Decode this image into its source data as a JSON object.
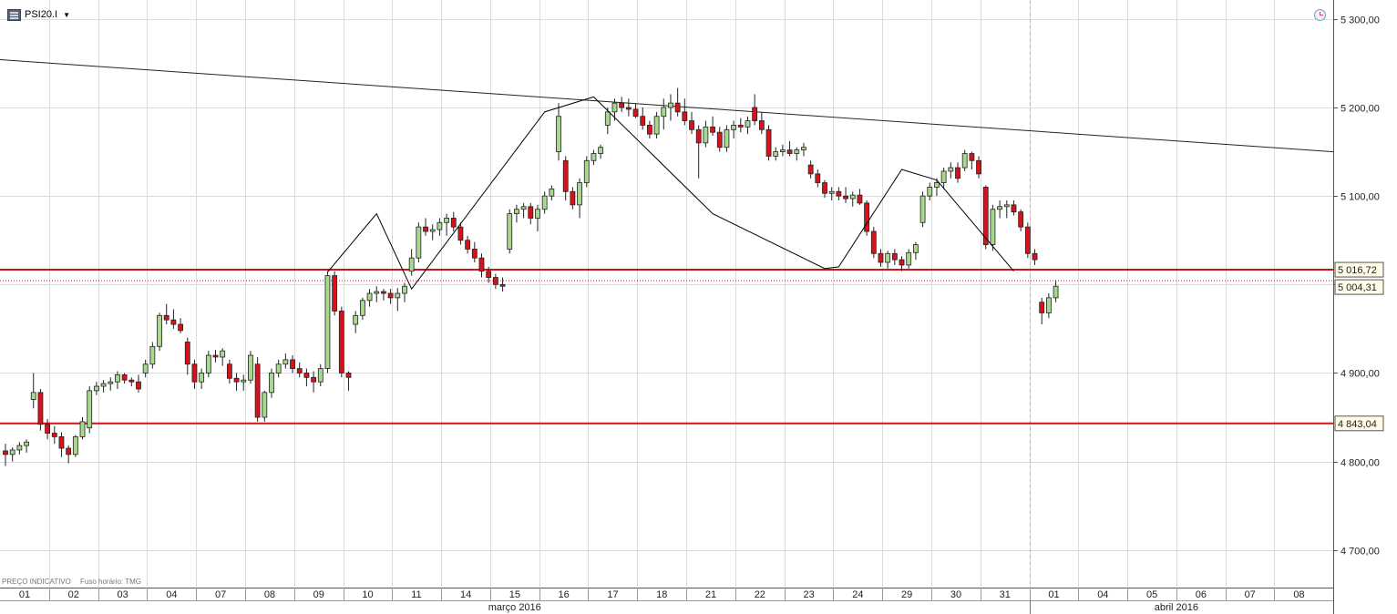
{
  "header": {
    "symbol_label": "PSI20.I",
    "symbol_icon": "chart-symbol-icon",
    "dropdown_icon": "caret-down-icon",
    "clock_icon": "clock-icon"
  },
  "footer": {
    "price_note": "PREÇO INDICATIVO",
    "timezone_note": "Fuso horário: TMG"
  },
  "chart_data": {
    "type": "candlestick",
    "title": "",
    "interval": "intraday, two bars per session (approx.)",
    "y_axis": {
      "position": "right",
      "ylim": [
        4685,
        5310
      ],
      "ticks": [
        4700,
        4800,
        4900,
        5000,
        5100,
        5200,
        5300
      ],
      "tick_labels": [
        "4 700,00",
        "4 800,00",
        "4 900,00",
        "",
        "5 100,00",
        "5 200,00",
        "5 300,00"
      ]
    },
    "x_axis": {
      "day_labels": [
        "01",
        "02",
        "03",
        "04",
        "07",
        "08",
        "09",
        "10",
        "11",
        "14",
        "15",
        "16",
        "17",
        "18",
        "21",
        "22",
        "23",
        "24",
        "29",
        "30",
        "31",
        "01",
        "04",
        "05",
        "06",
        "07",
        "08"
      ],
      "months": [
        {
          "label": "março 2016",
          "from_day_index": 0,
          "to_day_index": 20
        },
        {
          "label": "abril 2016",
          "from_day_index": 21,
          "to_day_index": 26
        }
      ]
    },
    "colors": {
      "up": "#a6d98d",
      "down": "#d7121a",
      "horizontal_line": "#d0141b",
      "pattern_line": "#000000"
    },
    "candles": [
      [
        4812,
        4820,
        4795,
        4808
      ],
      [
        4808,
        4816,
        4800,
        4813
      ],
      [
        4813,
        4822,
        4808,
        4818
      ],
      [
        4818,
        4825,
        4810,
        4822
      ],
      [
        4870,
        4900,
        4860,
        4878
      ],
      [
        4878,
        4882,
        4835,
        4842
      ],
      [
        4842,
        4848,
        4825,
        4832
      ],
      [
        4832,
        4840,
        4820,
        4828
      ],
      [
        4828,
        4833,
        4805,
        4815
      ],
      [
        4815,
        4818,
        4798,
        4808
      ],
      [
        4808,
        4830,
        4805,
        4828
      ],
      [
        4828,
        4850,
        4825,
        4845
      ],
      [
        4838,
        4885,
        4832,
        4880
      ],
      [
        4880,
        4890,
        4875,
        4885
      ],
      [
        4885,
        4892,
        4878,
        4888
      ],
      [
        4888,
        4895,
        4880,
        4890
      ],
      [
        4890,
        4902,
        4882,
        4898
      ],
      [
        4898,
        4900,
        4888,
        4892
      ],
      [
        4892,
        4895,
        4885,
        4890
      ],
      [
        4890,
        4898,
        4878,
        4882
      ],
      [
        4900,
        4915,
        4895,
        4910
      ],
      [
        4910,
        4935,
        4905,
        4930
      ],
      [
        4930,
        4968,
        4925,
        4965
      ],
      [
        4965,
        4978,
        4955,
        4960
      ],
      [
        4960,
        4972,
        4950,
        4955
      ],
      [
        4955,
        4962,
        4945,
        4948
      ],
      [
        4935,
        4940,
        4898,
        4910
      ],
      [
        4910,
        4915,
        4882,
        4890
      ],
      [
        4890,
        4905,
        4882,
        4900
      ],
      [
        4900,
        4925,
        4895,
        4920
      ],
      [
        4920,
        4926,
        4912,
        4918
      ],
      [
        4918,
        4928,
        4908,
        4925
      ],
      [
        4910,
        4915,
        4888,
        4894
      ],
      [
        4894,
        4900,
        4880,
        4890
      ],
      [
        4890,
        4898,
        4880,
        4892
      ],
      [
        4892,
        4925,
        4888,
        4920
      ],
      [
        4910,
        4918,
        4845,
        4850
      ],
      [
        4850,
        4880,
        4845,
        4878
      ],
      [
        4878,
        4905,
        4872,
        4900
      ],
      [
        4900,
        4915,
        4895,
        4910
      ],
      [
        4910,
        4922,
        4905,
        4915
      ],
      [
        4915,
        4920,
        4900,
        4905
      ],
      [
        4905,
        4912,
        4895,
        4900
      ],
      [
        4900,
        4905,
        4885,
        4895
      ],
      [
        4895,
        4902,
        4878,
        4890
      ],
      [
        4890,
        4910,
        4885,
        4905
      ],
      [
        4905,
        5015,
        4900,
        5010
      ],
      [
        5010,
        5015,
        4965,
        4970
      ],
      [
        4970,
        4975,
        4895,
        4900
      ],
      [
        4900,
        4902,
        4880,
        4895
      ],
      [
        4955,
        4970,
        4945,
        4965
      ],
      [
        4965,
        4985,
        4960,
        4982
      ],
      [
        4982,
        4995,
        4975,
        4990
      ],
      [
        4990,
        4998,
        4980,
        4992
      ],
      [
        4992,
        4995,
        4982,
        4990
      ],
      [
        4990,
        4995,
        4978,
        4985
      ],
      [
        4985,
        4996,
        4970,
        4990
      ],
      [
        4990,
        5002,
        4980,
        4998
      ],
      [
        5015,
        5040,
        5010,
        5030
      ],
      [
        5030,
        5070,
        5025,
        5065
      ],
      [
        5065,
        5075,
        5055,
        5060
      ],
      [
        5060,
        5068,
        5050,
        5062
      ],
      [
        5062,
        5075,
        5055,
        5070
      ],
      [
        5070,
        5080,
        5055,
        5075
      ],
      [
        5075,
        5082,
        5060,
        5065
      ],
      [
        5065,
        5070,
        5045,
        5050
      ],
      [
        5050,
        5055,
        5035,
        5040
      ],
      [
        5040,
        5048,
        5025,
        5030
      ],
      [
        5030,
        5035,
        5008,
        5015
      ],
      [
        5015,
        5020,
        5002,
        5008
      ],
      [
        5008,
        5012,
        4995,
        5000
      ],
      [
        5000,
        5008,
        4992,
        4998
      ],
      [
        5040,
        5085,
        5035,
        5080
      ],
      [
        5080,
        5090,
        5070,
        5085
      ],
      [
        5085,
        5092,
        5075,
        5088
      ],
      [
        5088,
        5092,
        5068,
        5075
      ],
      [
        5075,
        5090,
        5060,
        5085
      ],
      [
        5085,
        5105,
        5080,
        5100
      ],
      [
        5100,
        5112,
        5095,
        5108
      ],
      [
        5150,
        5205,
        5140,
        5190
      ],
      [
        5140,
        5145,
        5095,
        5105
      ],
      [
        5105,
        5110,
        5085,
        5090
      ],
      [
        5090,
        5120,
        5075,
        5115
      ],
      [
        5115,
        5145,
        5110,
        5140
      ],
      [
        5140,
        5152,
        5135,
        5148
      ],
      [
        5148,
        5158,
        5142,
        5155
      ],
      [
        5180,
        5200,
        5170,
        5195
      ],
      [
        5195,
        5210,
        5185,
        5205
      ],
      [
        5205,
        5212,
        5195,
        5200
      ],
      [
        5200,
        5210,
        5190,
        5198
      ],
      [
        5198,
        5205,
        5188,
        5190
      ],
      [
        5190,
        5200,
        5175,
        5180
      ],
      [
        5180,
        5185,
        5165,
        5170
      ],
      [
        5170,
        5195,
        5165,
        5190
      ],
      [
        5190,
        5210,
        5175,
        5200
      ],
      [
        5200,
        5215,
        5185,
        5205
      ],
      [
        5205,
        5222,
        5190,
        5195
      ],
      [
        5195,
        5210,
        5180,
        5185
      ],
      [
        5185,
        5195,
        5170,
        5175
      ],
      [
        5175,
        5180,
        5120,
        5160
      ],
      [
        5160,
        5185,
        5155,
        5178
      ],
      [
        5178,
        5190,
        5168,
        5172
      ],
      [
        5172,
        5178,
        5150,
        5155
      ],
      [
        5155,
        5180,
        5150,
        5175
      ],
      [
        5175,
        5185,
        5165,
        5180
      ],
      [
        5180,
        5188,
        5172,
        5178
      ],
      [
        5178,
        5190,
        5170,
        5185
      ],
      [
        5200,
        5215,
        5180,
        5185
      ],
      [
        5185,
        5195,
        5170,
        5175
      ],
      [
        5175,
        5180,
        5140,
        5145
      ],
      [
        5145,
        5155,
        5140,
        5150
      ],
      [
        5150,
        5158,
        5145,
        5152
      ],
      [
        5152,
        5162,
        5145,
        5148
      ],
      [
        5148,
        5155,
        5140,
        5152
      ],
      [
        5152,
        5160,
        5145,
        5155
      ],
      [
        5135,
        5140,
        5120,
        5125
      ],
      [
        5125,
        5130,
        5110,
        5115
      ],
      [
        5115,
        5118,
        5098,
        5103
      ],
      [
        5103,
        5110,
        5095,
        5105
      ],
      [
        5105,
        5110,
        5095,
        5100
      ],
      [
        5100,
        5110,
        5092,
        5097
      ],
      [
        5097,
        5105,
        5088,
        5101
      ],
      [
        5101,
        5108,
        5090,
        5092
      ],
      [
        5092,
        5095,
        5055,
        5060
      ],
      [
        5060,
        5065,
        5030,
        5035
      ],
      [
        5035,
        5040,
        5020,
        5025
      ],
      [
        5025,
        5038,
        5018,
        5035
      ],
      [
        5035,
        5040,
        5022,
        5028
      ],
      [
        5028,
        5032,
        5015,
        5022
      ],
      [
        5022,
        5040,
        5018,
        5036
      ],
      [
        5036,
        5048,
        5028,
        5045
      ],
      [
        5070,
        5105,
        5065,
        5100
      ],
      [
        5100,
        5115,
        5095,
        5110
      ],
      [
        5110,
        5120,
        5100,
        5115
      ],
      [
        5115,
        5132,
        5108,
        5128
      ],
      [
        5128,
        5138,
        5120,
        5132
      ],
      [
        5132,
        5138,
        5115,
        5120
      ],
      [
        5132,
        5152,
        5128,
        5148
      ],
      [
        5148,
        5150,
        5130,
        5140
      ],
      [
        5140,
        5145,
        5120,
        5125
      ],
      [
        5110,
        5112,
        5040,
        5045
      ],
      [
        5045,
        5090,
        5038,
        5085
      ],
      [
        5085,
        5095,
        5075,
        5088
      ],
      [
        5088,
        5095,
        5075,
        5090
      ],
      [
        5090,
        5095,
        5078,
        5082
      ],
      [
        5082,
        5085,
        5060,
        5065
      ],
      [
        5065,
        5070,
        5030,
        5035
      ],
      [
        5035,
        5040,
        5022,
        5028
      ],
      [
        4980,
        4985,
        4955,
        4968
      ],
      [
        4968,
        4990,
        4962,
        4985
      ],
      [
        4985,
        5005,
        4980,
        4998
      ]
    ],
    "horizontal_lines": [
      {
        "value": 5016.72,
        "label": "5 016,72",
        "style": "solid"
      },
      {
        "value": 5004.31,
        "label": "5 004,31",
        "style": "dotted"
      },
      {
        "value": 4843.04,
        "label": "4 843,04",
        "style": "solid"
      }
    ],
    "trendline": {
      "from_value": 5254,
      "to_value": 5150
    },
    "pattern_polyline": [
      [
        46,
        5014
      ],
      [
        53,
        5080
      ],
      [
        58,
        4995
      ],
      [
        77,
        5195
      ],
      [
        84,
        5212
      ],
      [
        101,
        5080
      ],
      [
        117,
        5018
      ],
      [
        119,
        5020
      ],
      [
        128,
        5130
      ],
      [
        133,
        5118
      ],
      [
        144,
        5015
      ]
    ],
    "current_marker_day_index": 21
  }
}
